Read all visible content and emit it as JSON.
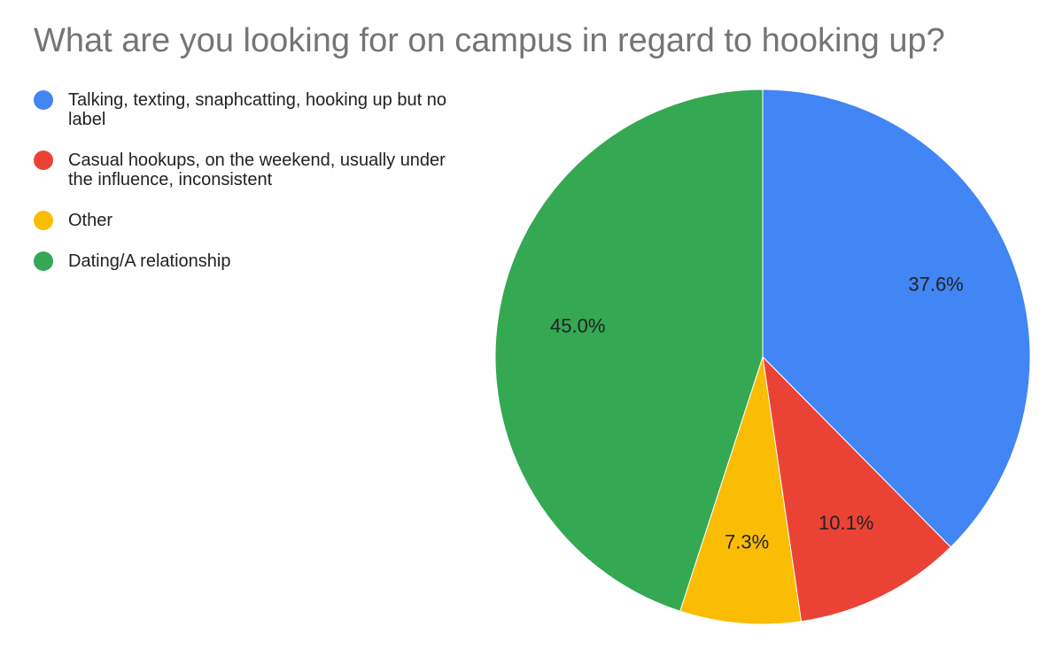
{
  "chart_data": {
    "type": "pie",
    "title": "What are you looking for on campus in regard to hooking up?",
    "categories": [
      "Talking, texting, snaphcatting, hooking up but no label",
      "Casual hookups, on the weekend, usually under the influence, inconsistent",
      "Other",
      "Dating/A relationship"
    ],
    "values": [
      37.6,
      10.1,
      7.3,
      45
    ],
    "value_labels": [
      "37.6%",
      "10.1%",
      "7.3%",
      "45.0%"
    ],
    "colors": [
      "#4285f4",
      "#ea4335",
      "#fbbc04",
      "#34a853"
    ],
    "legend": "top-left"
  }
}
